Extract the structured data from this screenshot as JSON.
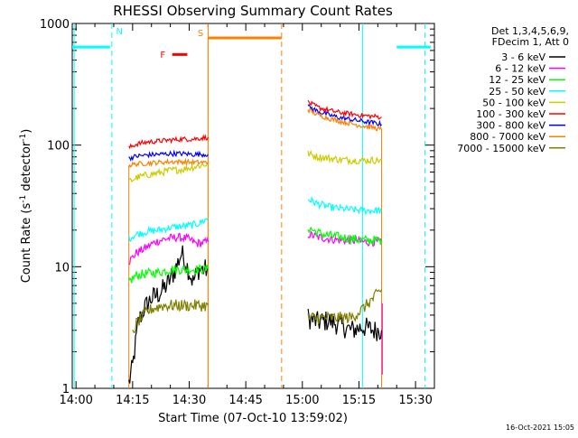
{
  "chart_data": {
    "type": "line",
    "title": "RHESSI Observing Summary Count Rates",
    "xlabel": "Start Time (07-Oct-10 13:59:02)",
    "ylabel_main": "Count Rate (s",
    "ylabel_sup1": "-1",
    "ylabel_mid": " detector",
    "ylabel_sup2": "-1",
    "ylabel_end": ")",
    "yscale": "log",
    "ylim": [
      1,
      1000
    ],
    "xlim_minutes": [
      -1,
      55.5
    ],
    "x_ticks": [
      {
        "m": 0,
        "label": "14:00"
      },
      {
        "m": 15,
        "label": "14:15"
      },
      {
        "m": 30,
        "label": "14:30"
      },
      {
        "m": 45,
        "label": "14:45"
      },
      {
        "m": 60,
        "label": "15:00"
      },
      {
        "m": 75,
        "label": "15:15"
      },
      {
        "m": 90,
        "label": "15:30"
      }
    ],
    "y_ticks": [
      {
        "v": 1,
        "label": "1"
      },
      {
        "v": 10,
        "label": "10"
      },
      {
        "v": 100,
        "label": "100"
      },
      {
        "v": 1000,
        "label": "1000"
      }
    ],
    "legend_header": [
      "Det 1,3,4,5,6,9,",
      "FDecim 1, Att 0"
    ],
    "series": [
      {
        "name": "3 - 6 keV",
        "color": "#000000",
        "segments": [
          [
            [
              14.0,
              1.1
            ],
            [
              15.0,
              1.5
            ],
            [
              16.5,
              3.5
            ],
            [
              18.0,
              4.5
            ],
            [
              20.0,
              5.5
            ],
            [
              22.0,
              6.0
            ],
            [
              24.0,
              7.0
            ],
            [
              26.0,
              9.0
            ],
            [
              28.0,
              13.0
            ],
            [
              29.5,
              10.0
            ],
            [
              31.0,
              7.5
            ],
            [
              32.5,
              9.5
            ],
            [
              35.0,
              9.5
            ]
          ],
          [
            [
              61.5,
              3.8
            ],
            [
              64.0,
              3.5
            ],
            [
              67.0,
              3.6
            ],
            [
              70.0,
              3.3
            ],
            [
              73.0,
              3.0
            ],
            [
              76.0,
              3.2
            ],
            [
              79.0,
              3.0
            ],
            [
              81.0,
              3.0
            ]
          ]
        ]
      },
      {
        "name": "6 - 12 keV",
        "color": "#ff00ff",
        "segments": [
          [
            [
              14.0,
              11.0
            ],
            [
              16.0,
              13.0
            ],
            [
              18.0,
              14.0
            ],
            [
              21.0,
              16.0
            ],
            [
              24.0,
              17.0
            ],
            [
              27.0,
              17.5
            ],
            [
              29.5,
              17.0
            ],
            [
              32.0,
              15.5
            ],
            [
              35.0,
              16.0
            ]
          ],
          [
            [
              61.5,
              18.5
            ],
            [
              64.0,
              17.5
            ],
            [
              67.0,
              17.0
            ],
            [
              70.0,
              16.5
            ],
            [
              73.0,
              16.5
            ],
            [
              76.0,
              16.0
            ],
            [
              79.0,
              16.0
            ],
            [
              81.0,
              16.0
            ]
          ]
        ]
      },
      {
        "name": "12 - 25 keV",
        "color": "#00ff00",
        "segments": [
          [
            [
              14.0,
              7.5
            ],
            [
              16.0,
              8.5
            ],
            [
              19.0,
              8.8
            ],
            [
              22.0,
              9.0
            ],
            [
              25.0,
              9.5
            ],
            [
              28.0,
              9.5
            ],
            [
              31.0,
              9.5
            ],
            [
              35.0,
              9.5
            ]
          ],
          [
            [
              61.5,
              21.0
            ],
            [
              64.0,
              19.0
            ],
            [
              67.0,
              18.0
            ],
            [
              70.0,
              17.5
            ],
            [
              73.0,
              17.0
            ],
            [
              76.0,
              16.5
            ],
            [
              79.0,
              16.5
            ],
            [
              81.0,
              16.5
            ]
          ]
        ]
      },
      {
        "name": "25 - 50 keV",
        "color": "#00ffff",
        "segments": [
          [
            [
              -1.0,
              640
            ],
            [
              9.0,
              640
            ]
          ],
          [
            [
              14.0,
              17.0
            ],
            [
              16.0,
              18.5
            ],
            [
              19.0,
              19.5
            ],
            [
              22.0,
              20.0
            ],
            [
              25.0,
              21.0
            ],
            [
              28.0,
              21.5
            ],
            [
              31.0,
              22.0
            ],
            [
              33.0,
              23.0
            ],
            [
              35.0,
              25.0
            ]
          ],
          [
            [
              61.5,
              36.0
            ],
            [
              64.0,
              33.0
            ],
            [
              67.0,
              31.0
            ],
            [
              70.0,
              30.0
            ],
            [
              73.0,
              29.5
            ],
            [
              76.0,
              29.0
            ],
            [
              79.0,
              29.0
            ],
            [
              81.0,
              29.0
            ]
          ],
          [
            [
              85.0,
              640
            ],
            [
              94.0,
              640
            ]
          ]
        ]
      },
      {
        "name": "50 - 100 keV",
        "color": "#cccc00",
        "segments": [
          [
            [
              14.0,
              50
            ],
            [
              16.0,
              54
            ],
            [
              19.0,
              57
            ],
            [
              22.0,
              59
            ],
            [
              25.0,
              62
            ],
            [
              28.0,
              63
            ],
            [
              31.0,
              66
            ],
            [
              35.0,
              70
            ]
          ],
          [
            [
              61.5,
              85
            ],
            [
              64.0,
              80
            ],
            [
              67.0,
              78
            ],
            [
              70.0,
              76
            ],
            [
              73.0,
              75
            ],
            [
              76.0,
              75
            ],
            [
              79.0,
              75
            ],
            [
              81.0,
              75
            ]
          ]
        ]
      },
      {
        "name": "100 - 300 keV",
        "color": "#ff0000",
        "segments": [
          [
            [
              14.0,
              95
            ],
            [
              16.0,
              102
            ],
            [
              19.0,
              106
            ],
            [
              22.0,
              108
            ],
            [
              25.0,
              110
            ],
            [
              28.0,
              112
            ],
            [
              31.0,
              112
            ],
            [
              35.0,
              116
            ]
          ],
          [
            [
              61.5,
              225
            ],
            [
              64.0,
              205
            ],
            [
              67.0,
              193
            ],
            [
              70.0,
              185
            ],
            [
              73.0,
              180
            ],
            [
              76.0,
              175
            ],
            [
              79.0,
              172
            ],
            [
              81.0,
              170
            ]
          ]
        ]
      },
      {
        "name": "300 - 800 keV",
        "color": "#0000ff",
        "segments": [
          [
            [
              14.0,
              78
            ],
            [
              16.0,
              81
            ],
            [
              19.0,
              83
            ],
            [
              22.0,
              84
            ],
            [
              25.0,
              85
            ],
            [
              28.0,
              85
            ],
            [
              31.0,
              84
            ],
            [
              35.0,
              84
            ]
          ],
          [
            [
              61.5,
              208
            ],
            [
              64.0,
              190
            ],
            [
              67.0,
              177
            ],
            [
              70.0,
              168
            ],
            [
              73.0,
              162
            ],
            [
              76.0,
              157
            ],
            [
              79.0,
              152
            ],
            [
              81.0,
              148
            ]
          ]
        ]
      },
      {
        "name": "800 - 7000 keV",
        "color": "#ff8000",
        "segments": [
          [
            [
              14.0,
              68
            ],
            [
              16.0,
              70
            ],
            [
              19.0,
              71
            ],
            [
              22.0,
              72
            ],
            [
              25.0,
              73
            ],
            [
              28.0,
              73
            ],
            [
              31.0,
              72
            ],
            [
              35.0,
              72
            ]
          ],
          [
            [
              61.5,
              196
            ],
            [
              64.0,
              178
            ],
            [
              67.0,
              166
            ],
            [
              70.0,
              157
            ],
            [
              73.0,
              150
            ],
            [
              76.0,
              144
            ],
            [
              79.0,
              139
            ],
            [
              81.0,
              134
            ]
          ]
        ]
      },
      {
        "name": "7000 - 15000 keV",
        "color": "#808000",
        "segments": [
          [
            [
              15.0,
              2.8
            ],
            [
              16.0,
              3.4
            ],
            [
              18.0,
              4.0
            ],
            [
              20.0,
              4.5
            ],
            [
              23.0,
              4.8
            ],
            [
              26.0,
              4.8
            ],
            [
              29.0,
              4.8
            ],
            [
              32.0,
              4.8
            ],
            [
              35.0,
              4.8
            ]
          ],
          [
            [
              61.5,
              3.8
            ],
            [
              64.0,
              3.8
            ],
            [
              67.0,
              3.8
            ],
            [
              70.0,
              3.8
            ],
            [
              73.0,
              3.8
            ],
            [
              76.0,
              4.5
            ],
            [
              78.0,
              5.2
            ],
            [
              80.0,
              6.0
            ],
            [
              81.0,
              6.5
            ]
          ]
        ]
      }
    ],
    "flags": [
      {
        "code": "N",
        "color": "#00ffff"
      },
      {
        "code": "F",
        "color": "#ff0000"
      },
      {
        "code": "S",
        "color": "#ff8000"
      }
    ],
    "night_bar_level": 640,
    "saa_bar_level": 760,
    "flare_bar_level": 555,
    "flare_span": [
      25.5,
      29.5
    ],
    "saa_span": [
      35.0,
      54.5
    ],
    "night_spans": [
      [
        -1.0,
        9.0
      ],
      [
        85.0,
        94.0
      ]
    ],
    "markers": [
      {
        "m": -0.5,
        "color": "#00ffff",
        "dashed": false
      },
      {
        "m": 9.5,
        "color": "#00ffff",
        "dashed": true
      },
      {
        "m": 35.0,
        "color": "#ff8000",
        "dashed": false
      },
      {
        "m": 54.5,
        "color": "#ff8000",
        "dashed": true
      },
      {
        "m": 76.0,
        "color": "#00ffff",
        "dashed": false
      },
      {
        "m": 92.5,
        "color": "#00ffff",
        "dashed": true
      }
    ]
  },
  "footer": {
    "timestamp": "16-Oct-2021 15:05"
  }
}
